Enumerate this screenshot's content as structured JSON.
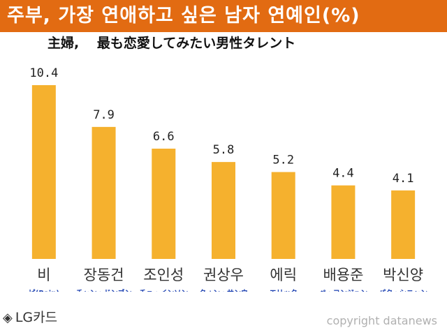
{
  "header": {
    "title": "주부, 가장 연애하고 싶은 남자 연예인(%)"
  },
  "subtitle": "主婦,　 最も恋愛してみたい男性タレント",
  "footer": {
    "logo_icon": "diamond-icon",
    "logo_text": "LG카드",
    "copyright": "copyright datanews"
  },
  "colors": {
    "header_bg": "#e26b12",
    "bar": "#f5b12e",
    "jp_label": "#1a3fb0"
  },
  "chart_data": {
    "type": "bar",
    "title": "주부, 가장 연애하고 싶은 남자 연예인(%)",
    "subtitle": "主婦,　 最も恋愛してみたい男性タレント",
    "categories": [
      "비",
      "장동건",
      "조인성",
      "권상우",
      "에릭",
      "배용준",
      "박신양"
    ],
    "categories_jp": [
      "ピ(Rain)",
      "チャン・ドンゴン",
      "チョ・インソン",
      "クォン・サンウ",
      "エリック",
      "ペ・ヨンジュン",
      "パク・シニャン"
    ],
    "values": [
      10.4,
      7.9,
      6.6,
      5.8,
      5.2,
      4.4,
      4.1
    ],
    "value_labels": [
      "10.4",
      "7.9",
      "6.6",
      "5.8",
      "5.2",
      "4.4",
      "4.1"
    ],
    "ylim": [
      0,
      10.4
    ],
    "grid": false,
    "legend": "none"
  }
}
